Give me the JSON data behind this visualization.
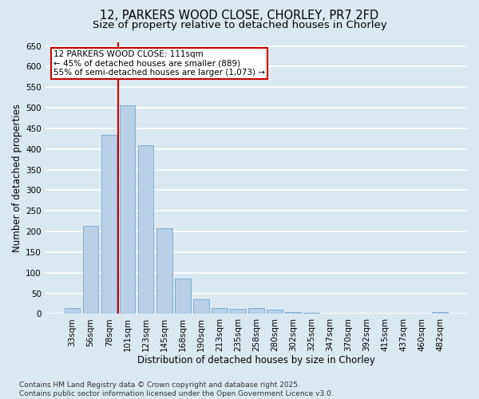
{
  "title_line1": "12, PARKERS WOOD CLOSE, CHORLEY, PR7 2FD",
  "title_line2": "Size of property relative to detached houses in Chorley",
  "xlabel": "Distribution of detached houses by size in Chorley",
  "ylabel": "Number of detached properties",
  "categories": [
    "33sqm",
    "56sqm",
    "78sqm",
    "101sqm",
    "123sqm",
    "145sqm",
    "168sqm",
    "190sqm",
    "213sqm",
    "235sqm",
    "258sqm",
    "280sqm",
    "302sqm",
    "325sqm",
    "347sqm",
    "370sqm",
    "392sqm",
    "415sqm",
    "437sqm",
    "460sqm",
    "482sqm"
  ],
  "values": [
    14,
    213,
    435,
    507,
    410,
    207,
    85,
    36,
    14,
    13,
    14,
    11,
    5,
    3,
    1,
    1,
    0,
    1,
    0,
    0,
    4
  ],
  "bar_color": "#b8d0e8",
  "bar_edge_color": "#6fa8d0",
  "vline_x_index": 3,
  "vline_color": "#cc0000",
  "annotation_text": "12 PARKERS WOOD CLOSE: 111sqm\n← 45% of detached houses are smaller (889)\n55% of semi-detached houses are larger (1,073) →",
  "annotation_box_color": "#ffffff",
  "annotation_box_edge_color": "#cc0000",
  "ylim": [
    0,
    660
  ],
  "yticks": [
    0,
    50,
    100,
    150,
    200,
    250,
    300,
    350,
    400,
    450,
    500,
    550,
    600,
    650
  ],
  "background_color": "#dce8f0",
  "plot_bg_color": "#dce8f0",
  "grid_color": "#ffffff",
  "footer_text": "Contains HM Land Registry data © Crown copyright and database right 2025.\nContains public sector information licensed under the Open Government Licence v3.0.",
  "title_fontsize": 10.5,
  "subtitle_fontsize": 9.5,
  "axis_label_fontsize": 8.5,
  "tick_fontsize": 7.5,
  "annotation_fontsize": 7.5,
  "footer_fontsize": 6.5
}
